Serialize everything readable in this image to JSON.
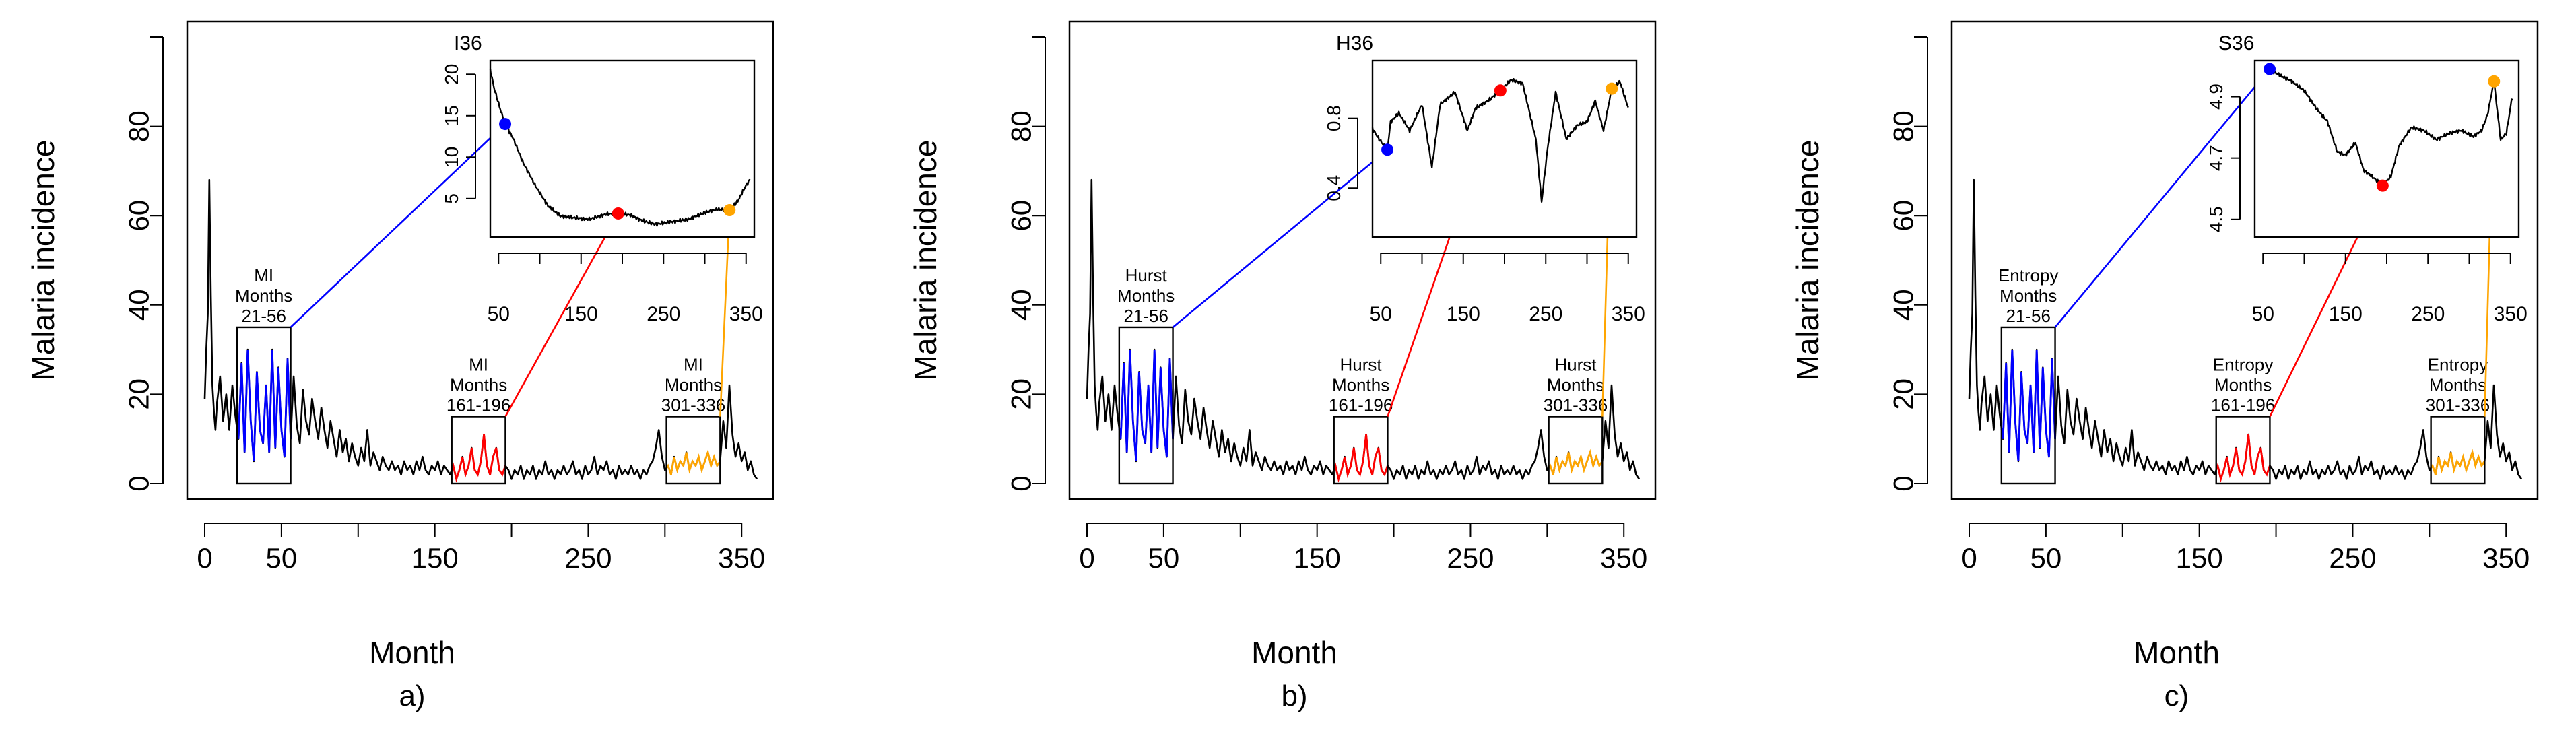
{
  "figure": {
    "panels": [
      {
        "id": "a",
        "caption": "a)",
        "inset_title": "I36",
        "metric": "MI",
        "inset_ylim": [
          1,
          21
        ],
        "inset_yticks": [
          "5",
          "10",
          "15",
          "20"
        ],
        "inset_dots": [
          {
            "x": 58,
            "y": 14.0,
            "color": "#0000ff"
          },
          {
            "x": 195,
            "y": 3.2,
            "color": "#ff0000"
          },
          {
            "x": 330,
            "y": 3.6,
            "color": "#ffa500"
          }
        ],
        "inset_knots": [
          [
            40,
            20.5
          ],
          [
            45,
            18.2
          ],
          [
            52,
            15.8
          ],
          [
            58,
            14.0
          ],
          [
            68,
            12.2
          ],
          [
            80,
            9.3
          ],
          [
            95,
            6.5
          ],
          [
            110,
            4.1
          ],
          [
            125,
            2.9
          ],
          [
            140,
            2.7
          ],
          [
            160,
            2.5
          ],
          [
            180,
            3.1
          ],
          [
            195,
            3.2
          ],
          [
            210,
            3.0
          ],
          [
            225,
            2.3
          ],
          [
            240,
            1.9
          ],
          [
            260,
            2.2
          ],
          [
            280,
            2.5
          ],
          [
            300,
            3.3
          ],
          [
            315,
            3.7
          ],
          [
            330,
            3.6
          ],
          [
            340,
            4.7
          ],
          [
            350,
            6.6
          ],
          [
            355,
            7.3
          ]
        ]
      },
      {
        "id": "b",
        "caption": "b)",
        "inset_title": "H36",
        "metric": "Hurst",
        "inset_ylim": [
          0.15,
          1.1
        ],
        "inset_yticks": [
          "0.4",
          "0.8"
        ],
        "inset_dots": [
          {
            "x": 58,
            "y": 0.62,
            "color": "#0000ff"
          },
          {
            "x": 195,
            "y": 0.96,
            "color": "#ff0000"
          },
          {
            "x": 330,
            "y": 0.97,
            "color": "#ffa500"
          }
        ],
        "inset_knots": [
          [
            40,
            0.74
          ],
          [
            48,
            0.68
          ],
          [
            58,
            0.62
          ],
          [
            62,
            0.78
          ],
          [
            72,
            0.83
          ],
          [
            85,
            0.73
          ],
          [
            100,
            0.88
          ],
          [
            112,
            0.52
          ],
          [
            122,
            0.88
          ],
          [
            140,
            0.95
          ],
          [
            155,
            0.73
          ],
          [
            165,
            0.86
          ],
          [
            180,
            0.9
          ],
          [
            195,
            0.96
          ],
          [
            208,
            1.02
          ],
          [
            222,
            1.0
          ],
          [
            238,
            0.68
          ],
          [
            245,
            0.32
          ],
          [
            252,
            0.62
          ],
          [
            262,
            0.95
          ],
          [
            275,
            0.68
          ],
          [
            288,
            0.76
          ],
          [
            300,
            0.78
          ],
          [
            310,
            0.9
          ],
          [
            320,
            0.73
          ],
          [
            330,
            0.97
          ],
          [
            340,
            1.01
          ],
          [
            350,
            0.86
          ]
        ]
      },
      {
        "id": "c",
        "caption": "c)",
        "inset_title": "S36",
        "metric": "Entropy",
        "inset_ylim": [
          4.46,
          5.0
        ],
        "inset_yticks": [
          "4.5",
          "4.7",
          "4.9"
        ],
        "inset_dots": [
          {
            "x": 58,
            "y": 4.99,
            "color": "#0000ff"
          },
          {
            "x": 195,
            "y": 4.61,
            "color": "#ff0000"
          },
          {
            "x": 330,
            "y": 4.95,
            "color": "#ffa500"
          }
        ],
        "inset_knots": [
          [
            58,
            4.99
          ],
          [
            70,
            4.97
          ],
          [
            85,
            4.95
          ],
          [
            100,
            4.92
          ],
          [
            115,
            4.86
          ],
          [
            128,
            4.82
          ],
          [
            140,
            4.72
          ],
          [
            150,
            4.71
          ],
          [
            162,
            4.75
          ],
          [
            172,
            4.66
          ],
          [
            182,
            4.64
          ],
          [
            195,
            4.61
          ],
          [
            205,
            4.64
          ],
          [
            215,
            4.74
          ],
          [
            230,
            4.8
          ],
          [
            245,
            4.79
          ],
          [
            260,
            4.76
          ],
          [
            275,
            4.78
          ],
          [
            290,
            4.79
          ],
          [
            305,
            4.77
          ],
          [
            315,
            4.79
          ],
          [
            322,
            4.84
          ],
          [
            330,
            4.95
          ],
          [
            338,
            4.76
          ],
          [
            345,
            4.78
          ],
          [
            352,
            4.9
          ]
        ]
      }
    ]
  },
  "chart_data": {
    "type": "line",
    "xlabel": "Month",
    "ylabel": "Malaria incidence",
    "xlim": [
      0,
      360
    ],
    "ylim": [
      0,
      100
    ],
    "xticks": [
      "0",
      "50",
      "150",
      "250",
      "350"
    ],
    "yticks": [
      "0",
      "20",
      "40",
      "60",
      "80"
    ],
    "inset_xticks": [
      "50",
      "150",
      "250",
      "350"
    ],
    "inset_xlim": [
      40,
      360
    ],
    "window_label_word": "Months",
    "windows": [
      {
        "label": "21-56",
        "from": 21,
        "to": 56,
        "ymax": 35,
        "color": "#0000ff"
      },
      {
        "label": "161-196",
        "from": 161,
        "to": 196,
        "ymax": 15,
        "color": "#ff0000"
      },
      {
        "label": "301-336",
        "from": 301,
        "to": 336,
        "ymax": 15,
        "color": "#ffa500"
      }
    ],
    "series_knots": [
      [
        0,
        19
      ],
      [
        1,
        30
      ],
      [
        2,
        38
      ],
      [
        3,
        68
      ],
      [
        4,
        42
      ],
      [
        5,
        22
      ],
      [
        6,
        16
      ],
      [
        7,
        12
      ],
      [
        8,
        18
      ],
      [
        10,
        24
      ],
      [
        12,
        14
      ],
      [
        14,
        20
      ],
      [
        16,
        12
      ],
      [
        18,
        22
      ],
      [
        20,
        15
      ],
      [
        22,
        10
      ],
      [
        24,
        27
      ],
      [
        26,
        7
      ],
      [
        28,
        30
      ],
      [
        30,
        14
      ],
      [
        32,
        5
      ],
      [
        34,
        25
      ],
      [
        36,
        12
      ],
      [
        38,
        9
      ],
      [
        40,
        22
      ],
      [
        42,
        7
      ],
      [
        44,
        30
      ],
      [
        46,
        8
      ],
      [
        48,
        26
      ],
      [
        50,
        12
      ],
      [
        52,
        6
      ],
      [
        54,
        28
      ],
      [
        56,
        10
      ],
      [
        58,
        24
      ],
      [
        60,
        13
      ],
      [
        62,
        9
      ],
      [
        64,
        21
      ],
      [
        66,
        14
      ],
      [
        68,
        11
      ],
      [
        70,
        19
      ],
      [
        72,
        14
      ],
      [
        74,
        10
      ],
      [
        76,
        17
      ],
      [
        78,
        12
      ],
      [
        80,
        8
      ],
      [
        82,
        14
      ],
      [
        84,
        10
      ],
      [
        86,
        6
      ],
      [
        88,
        12
      ],
      [
        90,
        7
      ],
      [
        92,
        10
      ],
      [
        94,
        5
      ],
      [
        96,
        9
      ],
      [
        98,
        6
      ],
      [
        100,
        4
      ],
      [
        102,
        8
      ],
      [
        104,
        5
      ],
      [
        106,
        12
      ],
      [
        108,
        4
      ],
      [
        110,
        7
      ],
      [
        112,
        5
      ],
      [
        114,
        3
      ],
      [
        116,
        6
      ],
      [
        118,
        4
      ],
      [
        120,
        3
      ],
      [
        122,
        5
      ],
      [
        124,
        3
      ],
      [
        126,
        4
      ],
      [
        128,
        2
      ],
      [
        130,
        5
      ],
      [
        132,
        3
      ],
      [
        134,
        4
      ],
      [
        136,
        2
      ],
      [
        138,
        5
      ],
      [
        140,
        3
      ],
      [
        142,
        6
      ],
      [
        144,
        3
      ],
      [
        146,
        2
      ],
      [
        148,
        4
      ],
      [
        150,
        3
      ],
      [
        152,
        5
      ],
      [
        154,
        2
      ],
      [
        156,
        4
      ],
      [
        158,
        3
      ],
      [
        160,
        2
      ],
      [
        162,
        4
      ],
      [
        164,
        1
      ],
      [
        166,
        3
      ],
      [
        168,
        6
      ],
      [
        170,
        2
      ],
      [
        172,
        4
      ],
      [
        174,
        8
      ],
      [
        176,
        3
      ],
      [
        178,
        2
      ],
      [
        180,
        5
      ],
      [
        182,
        11
      ],
      [
        184,
        4
      ],
      [
        186,
        2
      ],
      [
        188,
        6
      ],
      [
        190,
        8
      ],
      [
        192,
        3
      ],
      [
        194,
        2
      ],
      [
        196,
        4
      ],
      [
        198,
        3
      ],
      [
        200,
        1
      ],
      [
        202,
        3
      ],
      [
        204,
        2
      ],
      [
        206,
        4
      ],
      [
        208,
        1
      ],
      [
        210,
        3
      ],
      [
        212,
        2
      ],
      [
        214,
        4
      ],
      [
        216,
        1
      ],
      [
        218,
        3
      ],
      [
        220,
        2
      ],
      [
        222,
        5
      ],
      [
        224,
        2
      ],
      [
        226,
        3
      ],
      [
        228,
        1
      ],
      [
        230,
        3
      ],
      [
        232,
        2
      ],
      [
        234,
        4
      ],
      [
        236,
        2
      ],
      [
        238,
        3
      ],
      [
        240,
        5
      ],
      [
        242,
        2
      ],
      [
        244,
        3
      ],
      [
        246,
        1
      ],
      [
        248,
        4
      ],
      [
        250,
        2
      ],
      [
        252,
        3
      ],
      [
        254,
        6
      ],
      [
        256,
        2
      ],
      [
        258,
        4
      ],
      [
        260,
        3
      ],
      [
        262,
        5
      ],
      [
        264,
        2
      ],
      [
        266,
        3
      ],
      [
        268,
        1
      ],
      [
        270,
        4
      ],
      [
        272,
        2
      ],
      [
        274,
        3
      ],
      [
        276,
        2
      ],
      [
        278,
        4
      ],
      [
        280,
        2
      ],
      [
        282,
        3
      ],
      [
        284,
        1
      ],
      [
        286,
        3
      ],
      [
        288,
        2
      ],
      [
        290,
        4
      ],
      [
        292,
        5
      ],
      [
        294,
        8
      ],
      [
        296,
        12
      ],
      [
        298,
        6
      ],
      [
        300,
        3
      ],
      [
        302,
        4
      ],
      [
        304,
        2
      ],
      [
        306,
        6
      ],
      [
        308,
        3
      ],
      [
        310,
        5
      ],
      [
        312,
        4
      ],
      [
        314,
        7
      ],
      [
        316,
        3
      ],
      [
        318,
        5
      ],
      [
        320,
        4
      ],
      [
        322,
        6
      ],
      [
        324,
        3
      ],
      [
        326,
        5
      ],
      [
        328,
        7
      ],
      [
        330,
        4
      ],
      [
        332,
        6
      ],
      [
        334,
        4
      ],
      [
        336,
        5
      ],
      [
        338,
        14
      ],
      [
        340,
        8
      ],
      [
        342,
        22
      ],
      [
        344,
        11
      ],
      [
        346,
        6
      ],
      [
        348,
        9
      ],
      [
        350,
        5
      ],
      [
        352,
        7
      ],
      [
        354,
        3
      ],
      [
        356,
        5
      ],
      [
        358,
        2
      ],
      [
        360,
        1
      ]
    ]
  }
}
